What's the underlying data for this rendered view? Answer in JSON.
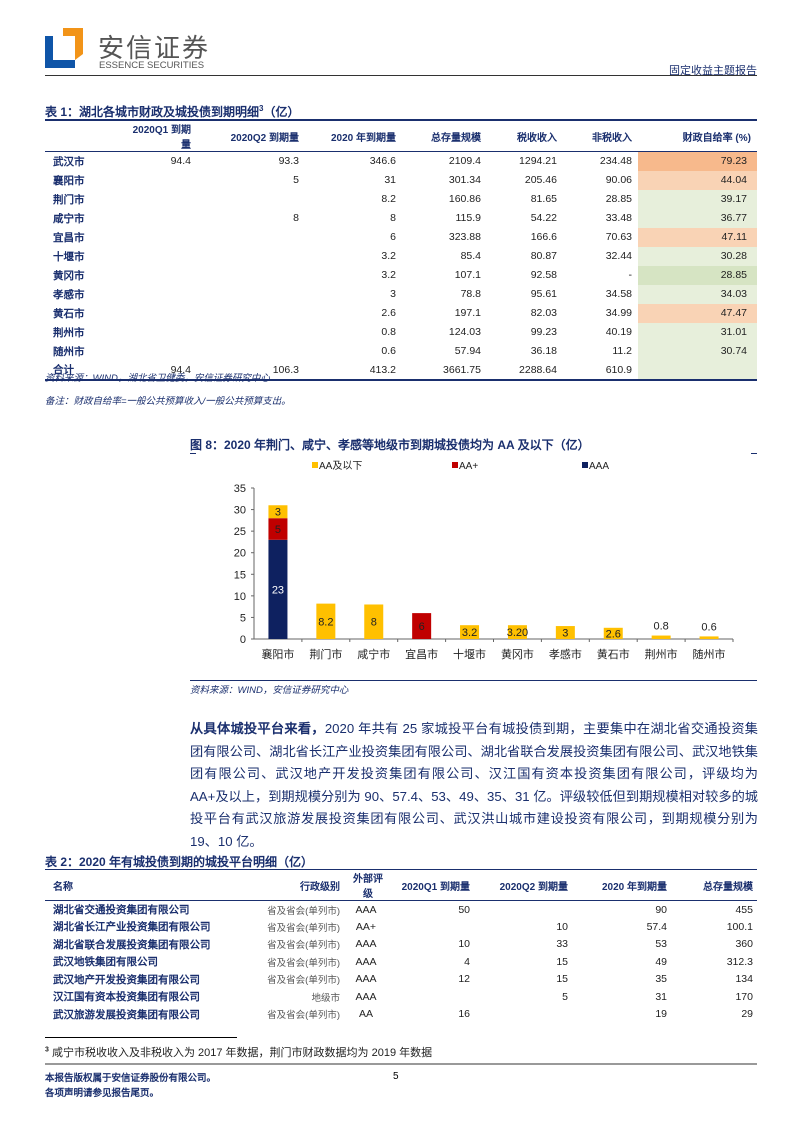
{
  "header": {
    "brand_cn": "安信证券",
    "brand_en": "ESSENCE SECURITIES",
    "report_type": "固定收益主题报告"
  },
  "table1": {
    "title": "表 1：湖北各城市财政及城投债到期明细",
    "title_sup": "3",
    "title_unit": "（亿）",
    "columns": [
      "",
      "2020Q1 到期量",
      "2020Q2 到期量",
      "2020 年到期量",
      "总存量规模",
      "税收收入",
      "非税收入",
      "财政自给率 (%)"
    ],
    "rows": [
      [
        "武汉市",
        "94.4",
        "93.3",
        "346.6",
        "2109.4",
        "1294.21",
        "234.48",
        "79.23"
      ],
      [
        "襄阳市",
        "",
        "5",
        "31",
        "301.34",
        "205.46",
        "90.06",
        "44.04"
      ],
      [
        "荆门市",
        "",
        "",
        "8.2",
        "160.86",
        "81.65",
        "28.85",
        "39.17"
      ],
      [
        "咸宁市",
        "",
        "8",
        "8",
        "115.9",
        "54.22",
        "33.48",
        "36.77"
      ],
      [
        "宜昌市",
        "",
        "",
        "6",
        "323.88",
        "166.6",
        "70.63",
        "47.11"
      ],
      [
        "十堰市",
        "",
        "",
        "3.2",
        "85.4",
        "80.87",
        "32.44",
        "30.28"
      ],
      [
        "黄冈市",
        "",
        "",
        "3.2",
        "107.1",
        "92.58",
        "-",
        "28.85"
      ],
      [
        "孝感市",
        "",
        "",
        "3",
        "78.8",
        "95.61",
        "34.58",
        "34.03"
      ],
      [
        "黄石市",
        "",
        "",
        "2.6",
        "197.1",
        "82.03",
        "34.99",
        "47.47"
      ],
      [
        "荆州市",
        "",
        "",
        "0.8",
        "124.03",
        "99.23",
        "40.19",
        "31.01"
      ],
      [
        "随州市",
        "",
        "",
        "0.6",
        "57.94",
        "36.18",
        "11.2",
        "30.74"
      ],
      [
        "合计",
        "94.4",
        "106.3",
        "413.2",
        "3661.75",
        "2288.64",
        "610.9",
        ""
      ]
    ],
    "rate_colors": [
      "#f7b98c",
      "#f9d3b5",
      "#e7efdb",
      "#e7efdb",
      "#f9d3b5",
      "#e7efdb",
      "#d6e4c3",
      "#e7efdb",
      "#f9d3b5",
      "#e7efdb",
      "#e7efdb",
      "#e7efdb"
    ],
    "source": "资料来源：WIND，湖北省卫健委，安信证券研究中心",
    "note": "备注：财政自给率=一般公共预算收入/一般公共预算支出。"
  },
  "figure8": {
    "title": "图 8：2020 年荆门、咸宁、孝感等地级市到期城投债均为 AA 及以下（亿）",
    "source": "资料来源：WIND，安信证券研究中心"
  },
  "chart_data": {
    "type": "bar",
    "stacked": true,
    "title": "图 8：2020 年荆门、咸宁、孝感等地级市到期城投债均为 AA 及以下（亿）",
    "categories": [
      "襄阳市",
      "荆门市",
      "咸宁市",
      "宜昌市",
      "十堰市",
      "黄冈市",
      "孝感市",
      "黄石市",
      "荆州市",
      "随州市"
    ],
    "series": [
      {
        "name": "AAA",
        "color": "#0e2160",
        "values": [
          23,
          0,
          0,
          0,
          0,
          0,
          0,
          0,
          0,
          0
        ]
      },
      {
        "name": "AA+",
        "color": "#c00000",
        "values": [
          5,
          0,
          0,
          6,
          0,
          0,
          0,
          0,
          0,
          0
        ]
      },
      {
        "name": "AA及以下",
        "color": "#ffc000",
        "values": [
          3,
          8.2,
          8,
          0,
          3.2,
          3.2,
          3,
          2.6,
          0.8,
          0.6
        ]
      }
    ],
    "data_labels": [
      [
        "23",
        "5",
        "3"
      ],
      [
        "8.2"
      ],
      [
        "8"
      ],
      [
        "6"
      ],
      [
        "3.2"
      ],
      [
        "3.20"
      ],
      [
        "3"
      ],
      [
        "2.6"
      ],
      [
        "0.8"
      ],
      [
        "0.6"
      ]
    ],
    "legend_order": [
      "AA及以下",
      "AA+",
      "AAA"
    ],
    "legend": "top",
    "ylim": [
      0,
      35
    ],
    "yticks": [
      "0",
      "5",
      "10",
      "15",
      "20",
      "25",
      "30",
      "35"
    ],
    "grid": false
  },
  "paragraph": {
    "lead": "从具体城投平台来看，",
    "body": "2020 年共有 25 家城投平台有城投债到期，主要集中在湖北省交通投资集团有限公司、湖北省长江产业投资集团有限公司、湖北省联合发展投资集团有限公司、武汉地铁集团有限公司、武汉地产开发投资集团有限公司、汉江国有资本投资集团有限公司，评级均为 AA+及以上，到期规模分别为 90、57.4、53、49、35、31 亿。评级较低但到期规模相对较多的城投平台有武汉旅游发展投资集团有限公司、武汉洪山城市建设投资有限公司，到期规模分别为 19、10 亿。"
  },
  "table2": {
    "title": "表 2：2020 年有城投债到期的城投平台明细（亿）",
    "columns": [
      "名称",
      "行政级别",
      "外部评级",
      "2020Q1 到期量",
      "2020Q2 到期量",
      "2020 年到期量",
      "总存量规模"
    ],
    "rows": [
      [
        "湖北省交通投资集团有限公司",
        "省及省会(单列市)",
        "AAA",
        "50",
        "",
        "90",
        "455"
      ],
      [
        "湖北省长江产业投资集团有限公司",
        "省及省会(单列市)",
        "AA+",
        "",
        "10",
        "57.4",
        "100.1"
      ],
      [
        "湖北省联合发展投资集团有限公司",
        "省及省会(单列市)",
        "AAA",
        "10",
        "33",
        "53",
        "360"
      ],
      [
        "武汉地铁集团有限公司",
        "省及省会(单列市)",
        "AAA",
        "4",
        "15",
        "49",
        "312.3"
      ],
      [
        "武汉地产开发投资集团有限公司",
        "省及省会(单列市)",
        "AAA",
        "12",
        "15",
        "35",
        "134"
      ],
      [
        "汉江国有资本投资集团有限公司",
        "地级市",
        "AAA",
        "",
        "5",
        "31",
        "170"
      ],
      [
        "武汉旅游发展投资集团有限公司",
        "省及省会(单列市)",
        "AA",
        "16",
        "",
        "19",
        "29"
      ]
    ]
  },
  "footnote": {
    "num": "3",
    "text": "咸宁市税收收入及非税收入为 2017 年数据，荆门市财政数据均为 2019 年数据"
  },
  "footer": {
    "line1": "本报告版权属于安信证券股份有限公司。",
    "line2": "各项声明请参见报告尾页。",
    "page": "5"
  }
}
